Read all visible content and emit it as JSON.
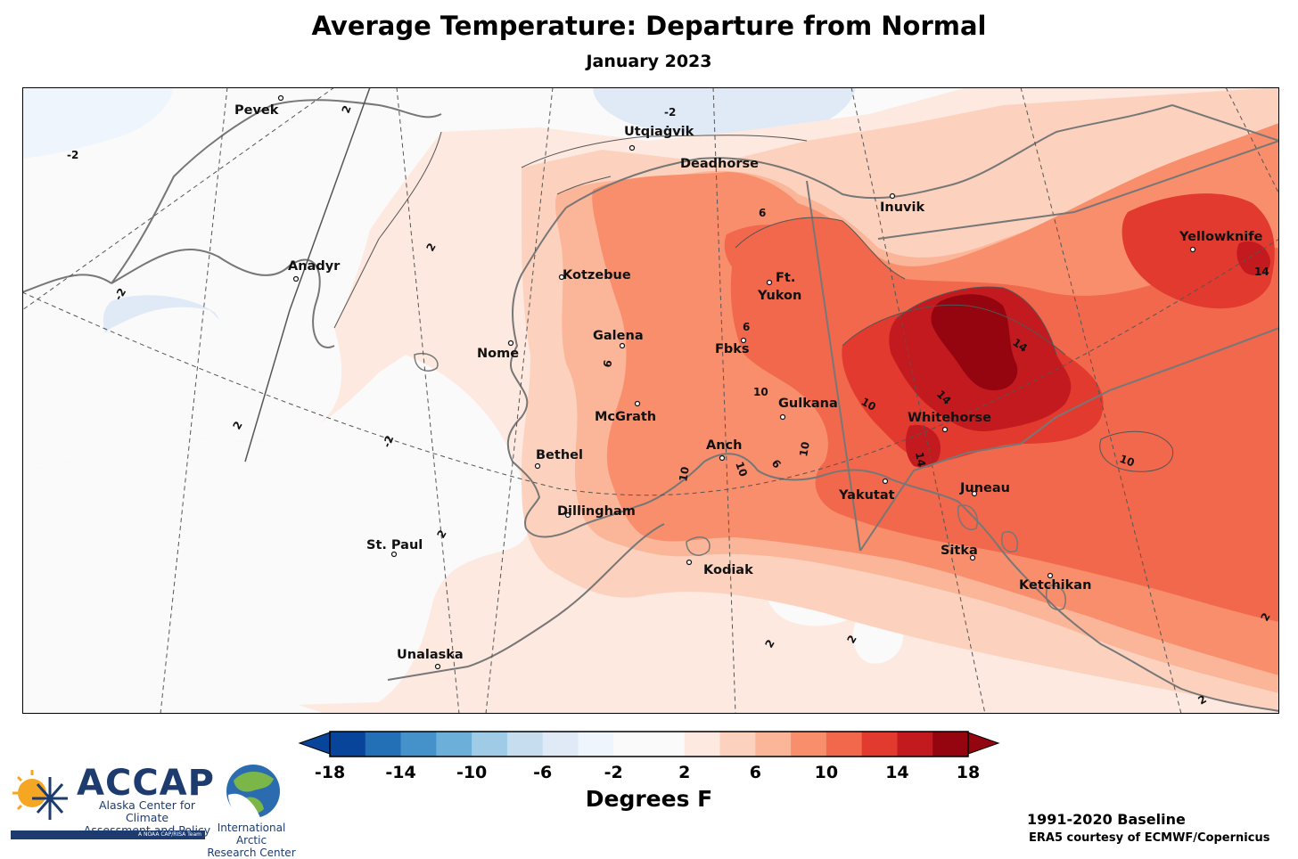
{
  "header": {
    "title": "Average Temperature: Departure from Normal",
    "subtitle": "January 2023"
  },
  "colors": {
    "scale": [
      "#08449a",
      "#2470b7",
      "#4592cb",
      "#6cb0da",
      "#9fcbe6",
      "#c6dcef",
      "#dfeaf6",
      "#eef5fc",
      "#fafafa",
      "#fde9df",
      "#fcd2bf",
      "#fbb598",
      "#f88e6c",
      "#f1684c",
      "#e23a2e",
      "#c31a20",
      "#95050f"
    ],
    "land_border": "#777777",
    "contour": "#555555"
  },
  "colorbar": {
    "ticks": [
      "-18",
      "-14",
      "-10",
      "-6",
      "-2",
      "2",
      "6",
      "10",
      "14",
      "18"
    ],
    "label": "Degrees F"
  },
  "cities": [
    {
      "name": "Pevek"
    },
    {
      "name": "Anadyr"
    },
    {
      "name": "Utqiaġvik"
    },
    {
      "name": "Deadhorse"
    },
    {
      "name": "Inuvik"
    },
    {
      "name": "Yellowknife"
    },
    {
      "name": "Kotzebue"
    },
    {
      "name": "Ft."
    },
    {
      "name": "Yukon"
    },
    {
      "name": "Galena"
    },
    {
      "name": "Nome"
    },
    {
      "name": "Fbks"
    },
    {
      "name": "Gulkana"
    },
    {
      "name": "McGrath"
    },
    {
      "name": "Whitehorse"
    },
    {
      "name": "Bethel"
    },
    {
      "name": "Anch"
    },
    {
      "name": "Yakutat"
    },
    {
      "name": "Juneau"
    },
    {
      "name": "Dillingham"
    },
    {
      "name": "St. Paul"
    },
    {
      "name": "Kodiak"
    },
    {
      "name": "Sitka"
    },
    {
      "name": "Ketchikan"
    },
    {
      "name": "Unalaska"
    }
  ],
  "contour_labels": {
    "c1": "-2",
    "c2": "2",
    "c3": "-2",
    "c4": "2",
    "c5": "-2",
    "c6": "2",
    "c7": "-2",
    "c8": "6",
    "c9": "6",
    "c10": "6",
    "c11": "10",
    "c12": "10",
    "c13": "14",
    "c14": "14",
    "c15": "14",
    "c16": "14",
    "c17": "10",
    "c18": "10",
    "c19": "10",
    "c20": "6",
    "c21": "10",
    "c22": "2",
    "c23": "2",
    "c24": "2",
    "c25": "2",
    "c26": "2"
  },
  "credits": {
    "baseline": "1991-2020 Baseline",
    "source": "ERA5 courtesy of ECMWF/Copernicus"
  },
  "logos": {
    "accap_name": "ACCAP",
    "accap_line1": "Alaska Center for Climate",
    "accap_line2": "Assessment and Policy",
    "accap_tag": "A NOAA CAP/RISA Team",
    "iarc_line1": "International Arctic",
    "iarc_line2": "Research Center"
  }
}
